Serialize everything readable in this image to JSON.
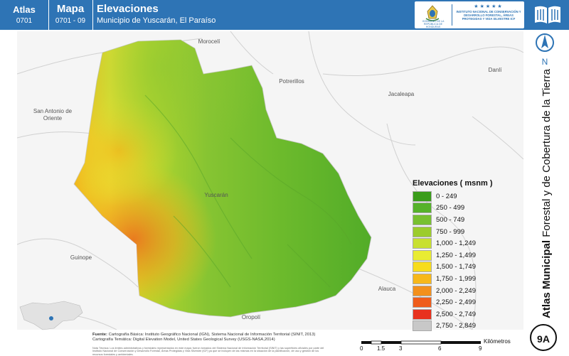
{
  "header": {
    "atlas_label": "Atlas",
    "atlas_code": "0701",
    "map_label": "Mapa",
    "map_code": "0701 - 09",
    "title": "Elevaciones",
    "subtitle": "Municipio de Yuscarán, El Paraíso",
    "logo_left_text": "GOBIERNO DE LA REPÚBLICA DE HONDURAS",
    "logo_right_text": "INSTITUTO NACIONAL DE CONSERVACIÓN Y DESARROLLO FORESTAL, ÁREAS PROTEGIDAS Y VIDA SILVESTRE ICF",
    "book_icon": "book-icon"
  },
  "places": [
    {
      "name": "Morocelí",
      "key": "moroceli"
    },
    {
      "name": "Potrerillos",
      "key": "potrerillos"
    },
    {
      "name": "Danlí",
      "key": "danli"
    },
    {
      "name": "Jacaleapa",
      "key": "jacaleapa"
    },
    {
      "name": "San Antonio de Oriente",
      "key": "san-antonio"
    },
    {
      "name": "Yuscarán",
      "key": "yuscaran"
    },
    {
      "name": "Guinope",
      "key": "guinope"
    },
    {
      "name": "Alauca",
      "key": "alauca"
    },
    {
      "name": "Oropolí",
      "key": "oropoli"
    }
  ],
  "legend": {
    "title": "Elevaciones ( msnm )",
    "classes": [
      {
        "label": "0 - 249",
        "color": "#3a9c1a"
      },
      {
        "label": "250 - 499",
        "color": "#56b22a"
      },
      {
        "label": "500 - 749",
        "color": "#78c030"
      },
      {
        "label": "750 - 999",
        "color": "#9ccc2c"
      },
      {
        "label": "1,000 - 1,249",
        "color": "#c8e030"
      },
      {
        "label": "1,250 - 1,499",
        "color": "#e9ec32"
      },
      {
        "label": "1,500 - 1,749",
        "color": "#f7dc1c"
      },
      {
        "label": "1,750 - 1,999",
        "color": "#f7b81a"
      },
      {
        "label": "2,000 - 2,249",
        "color": "#f3901c"
      },
      {
        "label": "2,250 - 2,499",
        "color": "#ef5d1c"
      },
      {
        "label": "2,500 - 2,749",
        "color": "#e8321e"
      },
      {
        "label": "2,750 - 2,849",
        "color": "#c8c8c8"
      }
    ]
  },
  "right_strip": {
    "north_label": "N",
    "vertical_title_bold": "Atlas Municipal",
    "vertical_title_rest": " Forestal y de Cobertura de la Tierra",
    "sheet": "9A"
  },
  "source": {
    "label": "Fuente:",
    "line1": "Cartografía Básica: Instituto Geográfico Nacional (IGN), Sistema Nacional de Información Territorial (SINIT, 2013)",
    "line2": "Cartografía Temática: Digital Elevation Model, United States Geological Survey (USGS-NASA,2014)",
    "notes": "Nota Técnica: Los límites administrativos y forestales representados en este mapa: fueron tomados del Sistema Nacional de Información Territorial (SINIT) y las superficies oficiales por parte del Instituto Nacional de Conservación y Desarrollo Forestal, Áreas Protegidas y Vida Silvestre (ICF) ya que se incluyen de las mismas en la situación de la planificación, de uso y gestión de los recursos forestales y ambientales."
  },
  "scale": {
    "ticks": [
      "0",
      "1.5",
      "3",
      "6",
      "9"
    ],
    "unit": "Kilómetros"
  }
}
